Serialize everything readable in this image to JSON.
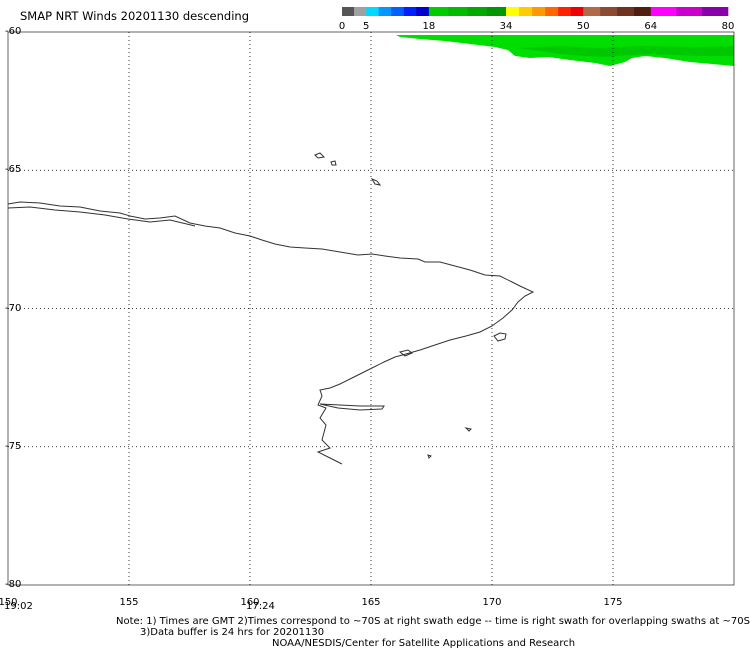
{
  "title": "SMAP NRT Winds  20201130 descending",
  "colorbar": {
    "segments": [
      {
        "from": 0,
        "to": 2.5,
        "color": "#555555"
      },
      {
        "from": 2.5,
        "to": 5,
        "color": "#a0a0a0"
      },
      {
        "from": 5,
        "to": 7.6,
        "color": "#00d8ff"
      },
      {
        "from": 7.6,
        "to": 10.2,
        "color": "#0098ff"
      },
      {
        "from": 10.2,
        "to": 12.8,
        "color": "#0060ff"
      },
      {
        "from": 12.8,
        "to": 15.4,
        "color": "#0020ff"
      },
      {
        "from": 15.4,
        "to": 18,
        "color": "#0000d0"
      },
      {
        "from": 18,
        "to": 22,
        "color": "#00cc00"
      },
      {
        "from": 22,
        "to": 26,
        "color": "#00bb00"
      },
      {
        "from": 26,
        "to": 30,
        "color": "#00a800"
      },
      {
        "from": 30,
        "to": 34,
        "color": "#009600"
      },
      {
        "from": 34,
        "to": 36.7,
        "color": "#ffff00"
      },
      {
        "from": 36.7,
        "to": 39.4,
        "color": "#ffcc00"
      },
      {
        "from": 39.4,
        "to": 42.1,
        "color": "#ff9900"
      },
      {
        "from": 42.1,
        "to": 44.8,
        "color": "#ff6600"
      },
      {
        "from": 44.8,
        "to": 47.4,
        "color": "#ff2200"
      },
      {
        "from": 47.4,
        "to": 50,
        "color": "#ee0000"
      },
      {
        "from": 50,
        "to": 53.5,
        "color": "#b06a4a"
      },
      {
        "from": 53.5,
        "to": 57,
        "color": "#8c4a30"
      },
      {
        "from": 57,
        "to": 60.5,
        "color": "#6e3420"
      },
      {
        "from": 60.5,
        "to": 64,
        "color": "#501e10"
      },
      {
        "from": 64,
        "to": 69.3,
        "color": "#ff00ff"
      },
      {
        "from": 69.3,
        "to": 74.6,
        "color": "#cc00cc"
      },
      {
        "from": 74.6,
        "to": 80,
        "color": "#8800aa"
      }
    ],
    "ticks": [
      "0",
      "5",
      "18",
      "34",
      "50",
      "64",
      "80"
    ],
    "tick_values": [
      0,
      5,
      18,
      34,
      50,
      64,
      80
    ]
  },
  "axes": {
    "lat_labels": [
      "-60",
      "-65",
      "-70",
      "-75",
      "-80"
    ],
    "lat_values": [
      -60,
      -65,
      -70,
      -75,
      -80
    ],
    "lon_labels": [
      "150",
      "155",
      "160",
      "165",
      "170",
      "175"
    ],
    "lon_values": [
      150,
      155,
      160,
      165,
      170,
      175
    ],
    "lon_range": [
      150,
      180
    ],
    "lat_range": [
      -60,
      -80
    ],
    "grid": true
  },
  "swath_times": [
    {
      "label": "19:02",
      "lon": 150
    },
    {
      "label": "17:24",
      "lon": 160
    }
  ],
  "wind_swath": {
    "color": "#00dd00",
    "speed_class": "18-22"
  },
  "notes": {
    "line1": "Note: 1) Times are GMT 2)Times correspond to ~70S at right swath edge -- time is right swath for overlapping swaths at ~70S",
    "line2": "3)Data buffer is 24 hrs for 20201130",
    "line3": "NOAA/NESDIS/Center for Satellite Applications and Research"
  }
}
